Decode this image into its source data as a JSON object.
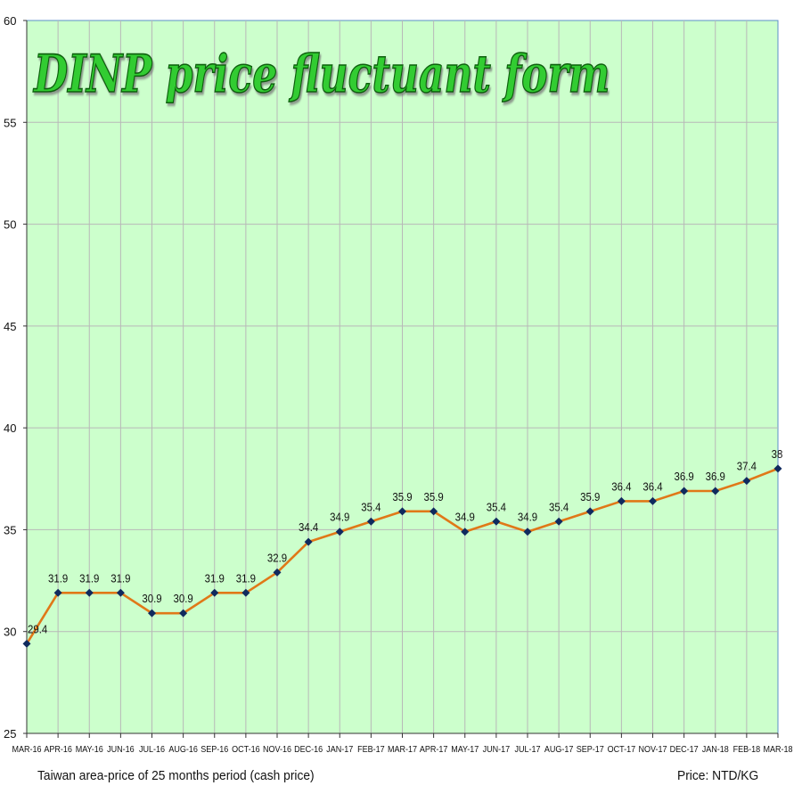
{
  "chart_data": {
    "type": "line",
    "title": "DINP price fluctuant form",
    "xlabel": "",
    "ylabel": "",
    "categories": [
      "MAR-16",
      "APR-16",
      "MAY-16",
      "JUN-16",
      "JUL-16",
      "AUG-16",
      "SEP-16",
      "OCT-16",
      "NOV-16",
      "DEC-16",
      "JAN-17",
      "FEB-17",
      "MAR-17",
      "APR-17",
      "MAY-17",
      "JUN-17",
      "JUL-17",
      "AUG-17",
      "SEP-17",
      "OCT-17",
      "NOV-17",
      "DEC-17",
      "JAN-18",
      "FEB-18",
      "MAR-18"
    ],
    "series": [
      {
        "values": [
          29.4,
          31.9,
          31.9,
          31.9,
          30.9,
          30.9,
          31.9,
          31.9,
          32.9,
          34.4,
          34.9,
          35.4,
          35.9,
          35.9,
          34.9,
          35.4,
          34.9,
          35.4,
          35.9,
          36.4,
          36.4,
          36.9,
          36.9,
          37.4,
          38
        ],
        "labels": [
          "29.4",
          "31.9",
          "31.9",
          "31.9",
          "30.9",
          "30.9",
          "31.9",
          "31.9",
          "32.9",
          "34.4",
          "34.9",
          "35.4",
          "35.9",
          "35.9",
          "34.9",
          "35.4",
          "34.9",
          "35.4",
          "35.9",
          "36.4",
          "36.4",
          "36.9",
          "36.9",
          "37.4",
          "38"
        ]
      }
    ],
    "ylim": [
      25,
      60
    ],
    "yticks": [
      "25",
      "30",
      "35",
      "40",
      "45",
      "50",
      "55",
      "60"
    ],
    "grid": true,
    "colors": {
      "plot_background": "#ccffcc",
      "line": "#e07818",
      "marker": "#102a5e",
      "gridline": "#b8b8b8",
      "title_fill": "#33cc33",
      "title_outline": "#0b5e0b"
    }
  },
  "footer": {
    "left": "Taiwan area-price of 25 months period (cash price)",
    "right": "Price: NTD/KG"
  }
}
